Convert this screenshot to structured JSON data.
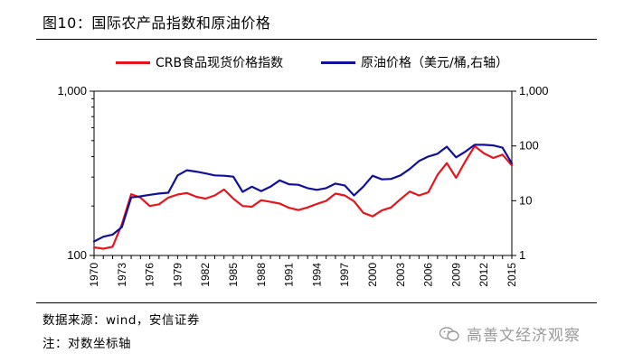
{
  "figure": {
    "title": "图10：国际农产品指数和原油价格",
    "source_note": "数据来源：wind，安信证券",
    "axis_note": "注：对数坐标轴",
    "watermark": "高善文经济观察"
  },
  "colors": {
    "red_series": "#e8141c",
    "blue_series": "#10109a"
  },
  "chart_data": {
    "type": "line",
    "title": "国际农产品指数和原油价格",
    "x": [
      1970,
      1971,
      1972,
      1973,
      1974,
      1975,
      1976,
      1977,
      1978,
      1979,
      1980,
      1981,
      1982,
      1983,
      1984,
      1985,
      1986,
      1987,
      1988,
      1989,
      1990,
      1991,
      1992,
      1993,
      1994,
      1995,
      1996,
      1997,
      1998,
      1999,
      2000,
      2001,
      2002,
      2003,
      2004,
      2005,
      2006,
      2007,
      2008,
      2009,
      2010,
      2011,
      2012,
      2013,
      2014,
      2015
    ],
    "x_tick_labels": [
      "1970",
      "1973",
      "1976",
      "1979",
      "1982",
      "1985",
      "1988",
      "1991",
      "1994",
      "1997",
      "2000",
      "2003",
      "2006",
      "2009",
      "2012",
      "2015"
    ],
    "xlim": [
      1970,
      2015
    ],
    "left_axis": {
      "scale": "log",
      "ylim": [
        100,
        1000
      ],
      "tick_labels": [
        "100",
        "1,000"
      ]
    },
    "right_axis": {
      "scale": "log",
      "ylim": [
        1,
        1000
      ],
      "tick_labels": [
        "1",
        "10",
        "100",
        "1,000"
      ]
    },
    "series": [
      {
        "name": "CRB食品现货价格指数",
        "axis": "left",
        "values": [
          112,
          110,
          113,
          155,
          236,
          225,
          200,
          205,
          225,
          235,
          240,
          228,
          222,
          232,
          252,
          222,
          200,
          198,
          217,
          212,
          207,
          195,
          189,
          196,
          206,
          215,
          238,
          232,
          214,
          182,
          173,
          188,
          196,
          220,
          245,
          232,
          242,
          310,
          365,
          297,
          375,
          463,
          418,
          392,
          411,
          354
        ]
      },
      {
        "name": "原油价格（美元/桶,右轴）",
        "axis": "right",
        "values": [
          1.8,
          2.2,
          2.4,
          3.3,
          11.5,
          12.0,
          12.8,
          13.5,
          14.0,
          29.0,
          36.0,
          34.0,
          31.5,
          29.0,
          28.5,
          27.5,
          14.5,
          18.0,
          15.0,
          18.0,
          23.5,
          20.0,
          19.5,
          17.0,
          15.8,
          17.0,
          20.5,
          19.0,
          12.5,
          18.0,
          28.5,
          24.5,
          25.0,
          29.0,
          38.0,
          53.0,
          64.0,
          72.0,
          97.0,
          62.0,
          79.0,
          105.0,
          105.0,
          102.0,
          93.0,
          48.0
        ]
      }
    ]
  }
}
